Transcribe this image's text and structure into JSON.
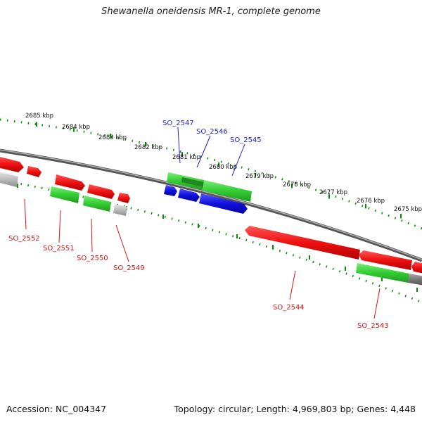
{
  "title": "Shewanella oneidensis MR-1, complete genome",
  "footer": {
    "accession": "Accession: NC_004347",
    "summary": "Topology: circular; Length: 4,969,803 bp; Genes: 4,448"
  },
  "colors": {
    "backbone": "#808080",
    "tick": "#0a8a0a",
    "red_feature": "#ee1111",
    "green_feature": "#33cc33",
    "blue_feature": "#1111dd",
    "gray_feature": "#bbbbbb",
    "blue_label": "#1f1fcc",
    "red_label": "#dd1111"
  },
  "scale_labels": [
    "2685 kbp",
    "2684 kbp",
    "2683 kbp",
    "2682 kbp",
    "2681 kbp",
    "2680 kbp",
    "2679 kbp",
    "2678 kbp",
    "2677 kbp",
    "2676 kbp",
    "2675 kbp"
  ],
  "gene_labels_top": [
    "SO_2547",
    "SO_2546",
    "SO_2545"
  ],
  "gene_labels_bottom": [
    "SO_2552",
    "SO_2551",
    "SO_2550",
    "SO_2549",
    "SO_2544",
    "SO_2543"
  ]
}
